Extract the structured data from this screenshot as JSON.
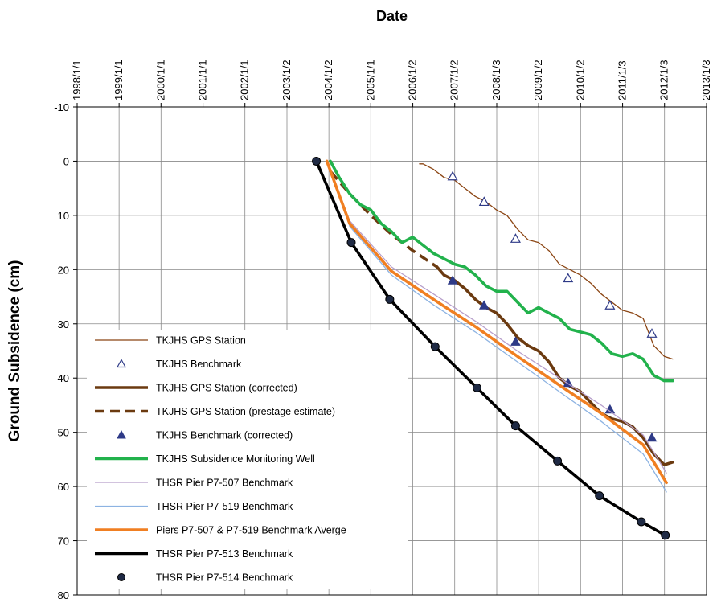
{
  "chart_data": {
    "type": "line",
    "xlabel": "Date",
    "ylabel": "Ground Subsidence (cm)",
    "x_axis_position": "top",
    "y_axis_inverted": true,
    "grid": true,
    "legend_position": "bottom-left",
    "xlim": [
      "1998-01-01",
      "2013-01-03"
    ],
    "ylim": [
      -10,
      80
    ],
    "x_ticks": [
      "1998/1/1",
      "1999/1/1",
      "2000/1/1",
      "2001/1/1",
      "2002/1/1",
      "2003/1/2",
      "2004/1/2",
      "2005/1/1",
      "2006/1/2",
      "2007/1/2",
      "2008/1/3",
      "2009/1/2",
      "2010/1/2",
      "2011/1/3",
      "2012/1/3",
      "2013/1/3"
    ],
    "y_ticks": [
      "-10",
      "0",
      "10",
      "20",
      "30",
      "40",
      "50",
      "60",
      "70",
      "80"
    ],
    "series": [
      {
        "name": "TKJHS GPS Station",
        "style": "thin-line",
        "color": "#8B4513",
        "x": [
          "2006-03-01",
          "2006-04-01",
          "2006-07-01",
          "2006-10-01",
          "2007-01-01",
          "2007-04-01",
          "2007-07-01",
          "2007-10-01",
          "2008-01-01",
          "2008-04-01",
          "2008-07-01",
          "2008-10-01",
          "2009-01-01",
          "2009-04-01",
          "2009-07-01",
          "2009-10-01",
          "2010-01-01",
          "2010-04-01",
          "2010-07-01",
          "2010-10-01",
          "2011-01-01",
          "2011-04-01",
          "2011-07-01",
          "2011-10-01",
          "2012-01-01",
          "2012-03-15"
        ],
        "y": [
          0.5,
          0.5,
          1.5,
          3,
          3.5,
          5,
          6.5,
          7.5,
          9,
          10,
          12.5,
          14.5,
          15,
          16.5,
          19,
          20,
          21,
          22.5,
          24.5,
          26,
          27.5,
          28,
          29,
          34,
          36,
          36.5
        ]
      },
      {
        "name": "TKJHS Benchmark",
        "style": "open-triangle",
        "color": "#2E3A87",
        "x": [
          "2006-12-15",
          "2007-09-15",
          "2008-06-15",
          "2009-09-15",
          "2010-09-15",
          "2011-09-15"
        ],
        "y": [
          2.8,
          7.5,
          14.3,
          21.6,
          26.6,
          31.8
        ]
      },
      {
        "name": "TKJHS GPS Station (corrected)",
        "style": "thick-line",
        "color": "#6B3A10",
        "x": [
          "2006-08-01",
          "2006-10-01",
          "2007-01-01",
          "2007-04-01",
          "2007-07-01",
          "2007-10-01",
          "2008-01-01",
          "2008-04-01",
          "2008-07-01",
          "2008-10-01",
          "2009-01-01",
          "2009-04-01",
          "2009-07-01",
          "2009-10-01",
          "2010-01-01",
          "2010-04-01",
          "2010-07-01",
          "2010-10-01",
          "2011-01-01",
          "2011-04-01",
          "2011-07-01",
          "2011-10-01",
          "2012-01-01",
          "2012-03-15"
        ],
        "y": [
          19.5,
          21,
          22,
          23.5,
          25.5,
          27,
          28,
          30,
          32.5,
          34,
          35,
          37,
          40,
          41.5,
          42.5,
          44.5,
          46.5,
          47.5,
          48,
          49,
          51,
          54,
          56,
          55.5
        ]
      },
      {
        "name": "TKJHS GPS Station (prestage estimate)",
        "style": "dashed-line",
        "color": "#6B3A10",
        "x": [
          "2004-01-20",
          "2004-07-01",
          "2005-01-01",
          "2005-07-01",
          "2006-01-01",
          "2006-08-01"
        ],
        "y": [
          2,
          6,
          10,
          13.5,
          16.5,
          19.5
        ]
      },
      {
        "name": "TKJHS Benchmark (corrected)",
        "style": "filled-triangle",
        "color": "#2E3A87",
        "x": [
          "2006-12-15",
          "2007-09-15",
          "2008-06-15",
          "2009-09-15",
          "2010-09-15",
          "2011-09-15"
        ],
        "y": [
          22,
          26.6,
          33.3,
          40.9,
          45.8,
          51
        ]
      },
      {
        "name": "TKJHS Subsidence Monitoring Well",
        "style": "thick-line",
        "color": "#22B24C",
        "x": [
          "2004-01-15",
          "2004-04-01",
          "2004-07-01",
          "2004-10-01",
          "2005-01-01",
          "2005-04-01",
          "2005-07-01",
          "2005-10-01",
          "2006-01-01",
          "2006-04-01",
          "2006-07-01",
          "2006-10-01",
          "2007-01-01",
          "2007-04-01",
          "2007-07-01",
          "2007-10-01",
          "2008-01-01",
          "2008-04-01",
          "2008-07-01",
          "2008-10-01",
          "2009-01-01",
          "2009-04-01",
          "2009-07-01",
          "2009-10-01",
          "2010-01-01",
          "2010-04-01",
          "2010-07-01",
          "2010-10-01",
          "2011-01-01",
          "2011-04-01",
          "2011-07-01",
          "2011-10-01",
          "2012-01-01",
          "2012-03-15"
        ],
        "y": [
          0,
          3,
          6,
          8,
          9,
          11.5,
          13,
          15,
          14,
          15.5,
          17,
          18,
          19,
          19.5,
          21,
          23,
          24,
          24,
          26,
          28,
          27,
          28,
          29,
          31,
          31.5,
          32,
          33.5,
          35.5,
          36,
          35.5,
          36.5,
          39.5,
          40.5,
          40.5
        ]
      },
      {
        "name": "THSR Pier P7-507 Benchmark",
        "style": "thin-line",
        "color": "#B79FCB",
        "x": [
          "2003-12-15",
          "2004-07-01",
          "2005-07-01",
          "2006-07-01",
          "2007-07-01",
          "2008-07-01",
          "2009-07-01",
          "2010-07-01",
          "2011-07-01",
          "2012-01-20"
        ],
        "y": [
          0,
          11,
          19.5,
          24.5,
          29.5,
          35,
          40,
          45,
          50.5,
          57.5
        ]
      },
      {
        "name": "THSR Pier P7-519 Benchmark",
        "style": "thin-line",
        "color": "#8DB3E2",
        "x": [
          "2003-12-15",
          "2004-07-01",
          "2005-07-01",
          "2006-07-01",
          "2007-07-01",
          "2008-07-01",
          "2009-07-01",
          "2010-07-01",
          "2011-07-01",
          "2012-01-20"
        ],
        "y": [
          0,
          12,
          21,
          26.5,
          31.5,
          37,
          42.5,
          48,
          54,
          61
        ]
      },
      {
        "name": "Piers P7-507 & P7-519 Benchmark Averge",
        "style": "thick-line",
        "color": "#F07F22",
        "x": [
          "2003-12-15",
          "2004-07-01",
          "2005-07-01",
          "2006-07-01",
          "2007-07-01",
          "2008-07-01",
          "2009-07-01",
          "2010-07-01",
          "2011-07-01",
          "2012-01-20"
        ],
        "y": [
          0,
          11.5,
          20.3,
          25.5,
          30.5,
          36,
          41.3,
          46.5,
          52.3,
          59.3
        ]
      },
      {
        "name": "THSR Pier P7-513 Benchmark",
        "style": "thick-line",
        "color": "#000000",
        "x": [
          "2003-09-15",
          "2004-07-15",
          "2005-06-15",
          "2006-07-15",
          "2007-07-15",
          "2008-06-15",
          "2009-06-15",
          "2010-06-15",
          "2011-06-15",
          "2012-01-10"
        ],
        "y": [
          0,
          15,
          25.5,
          34.2,
          41.8,
          48.8,
          55.3,
          61.7,
          66.5,
          69
        ]
      },
      {
        "name": "THSR Pier P7-514 Benchmark",
        "style": "filled-circle",
        "color": "#1F2A44",
        "x": [
          "2003-09-15",
          "2004-07-15",
          "2005-06-15",
          "2006-07-15",
          "2007-07-15",
          "2008-06-15",
          "2009-06-15",
          "2010-06-15",
          "2011-06-15",
          "2012-01-10"
        ],
        "y": [
          0,
          15,
          25.5,
          34.2,
          41.8,
          48.8,
          55.3,
          61.7,
          66.5,
          69
        ]
      }
    ]
  }
}
